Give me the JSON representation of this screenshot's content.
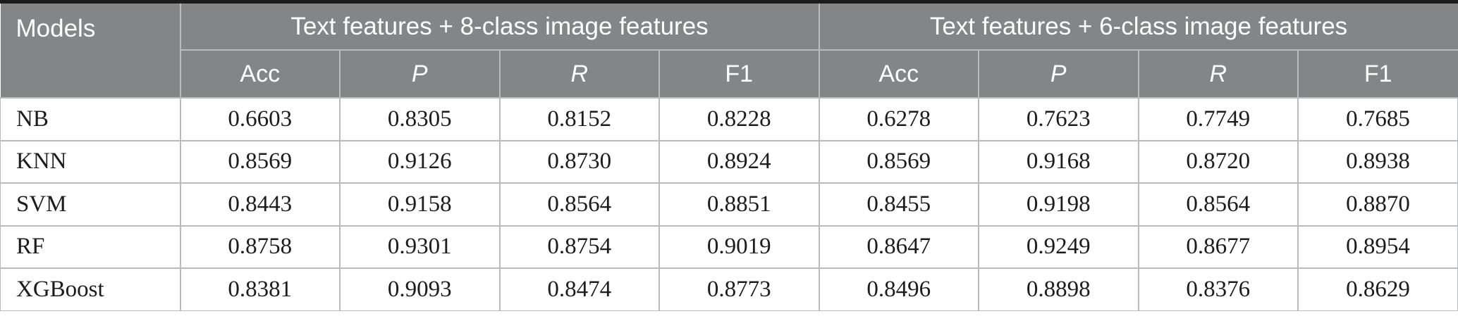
{
  "colors": {
    "accent_bar": "#1c1c1c",
    "header_bg": "#838587",
    "header_text": "#ffffff",
    "grid_line": "#b9bbbd",
    "body_text": "#1c1c1c"
  },
  "table": {
    "corner_label": "Models",
    "groups": [
      {
        "label": "Text features + 8-class image features"
      },
      {
        "label": "Text features + 6-class image features"
      }
    ],
    "metric_headers": [
      {
        "label": "Acc",
        "italic": false
      },
      {
        "label": "P",
        "italic": true
      },
      {
        "label": "R",
        "italic": true
      },
      {
        "label": "F1",
        "italic": false
      }
    ],
    "rows": [
      {
        "model": "NB",
        "values": [
          "0.6603",
          "0.8305",
          "0.8152",
          "0.8228",
          "0.6278",
          "0.7623",
          "0.7749",
          "0.7685"
        ]
      },
      {
        "model": "KNN",
        "values": [
          "0.8569",
          "0.9126",
          "0.8730",
          "0.8924",
          "0.8569",
          "0.9168",
          "0.8720",
          "0.8938"
        ]
      },
      {
        "model": "SVM",
        "values": [
          "0.8443",
          "0.9158",
          "0.8564",
          "0.8851",
          "0.8455",
          "0.9198",
          "0.8564",
          "0.8870"
        ]
      },
      {
        "model": "RF",
        "values": [
          "0.8758",
          "0.9301",
          "0.8754",
          "0.9019",
          "0.8647",
          "0.9249",
          "0.8677",
          "0.8954"
        ]
      },
      {
        "model": "XGBoost",
        "values": [
          "0.8381",
          "0.9093",
          "0.8474",
          "0.8773",
          "0.8496",
          "0.8898",
          "0.8376",
          "0.8629"
        ]
      }
    ]
  },
  "chart_data": {
    "type": "table",
    "title": "",
    "column_groups": [
      "Text features + 8-class image features",
      "Text features + 6-class image features"
    ],
    "columns": [
      "Models",
      "Acc",
      "P",
      "R",
      "F1",
      "Acc",
      "P",
      "R",
      "F1"
    ],
    "rows": [
      [
        "NB",
        0.6603,
        0.8305,
        0.8152,
        0.8228,
        0.6278,
        0.7623,
        0.7749,
        0.7685
      ],
      [
        "KNN",
        0.8569,
        0.9126,
        0.873,
        0.8924,
        0.8569,
        0.9168,
        0.872,
        0.8938
      ],
      [
        "SVM",
        0.8443,
        0.9158,
        0.8564,
        0.8851,
        0.8455,
        0.9198,
        0.8564,
        0.887
      ],
      [
        "RF",
        0.8758,
        0.9301,
        0.8754,
        0.9019,
        0.8647,
        0.9249,
        0.8677,
        0.8954
      ],
      [
        "XGBoost",
        0.8381,
        0.9093,
        0.8474,
        0.8773,
        0.8496,
        0.8898,
        0.8376,
        0.8629
      ]
    ]
  }
}
